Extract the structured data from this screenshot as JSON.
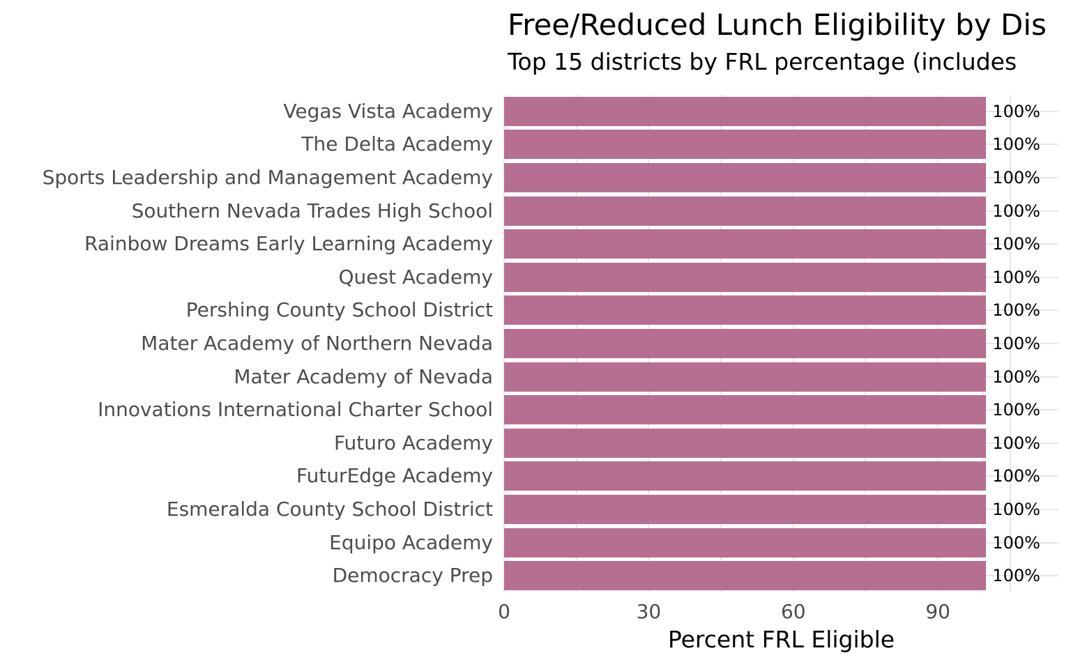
{
  "page": {
    "background": "#ffffff"
  },
  "chart_data": {
    "type": "bar",
    "orientation": "horizontal",
    "title": "Free/Reduced Lunch Eligibility by Dis",
    "subtitle": "Top 15 districts by FRL percentage (includes",
    "xlabel": "Percent FRL Eligible",
    "ylabel": "",
    "categories": [
      "Vegas Vista Academy",
      "The Delta Academy",
      "Sports Leadership and Management Academy",
      "Southern Nevada Trades High School",
      "Rainbow Dreams Early Learning Academy",
      "Quest Academy",
      "Pershing County School District",
      "Mater Academy of Northern Nevada",
      "Mater Academy of Nevada",
      "Innovations International Charter School",
      "Futuro Academy",
      "FuturEdge Academy",
      "Esmeralda County School District",
      "Equipo Academy",
      "Democracy Prep"
    ],
    "values": [
      100,
      100,
      100,
      100,
      100,
      100,
      100,
      100,
      100,
      100,
      100,
      100,
      100,
      100,
      100
    ],
    "value_labels": [
      "100%",
      "100%",
      "100%",
      "100%",
      "100%",
      "100%",
      "100%",
      "100%",
      "100%",
      "100%",
      "100%",
      "100%",
      "100%",
      "100%",
      "100%"
    ],
    "xlim": [
      0,
      115
    ],
    "xticks": [
      0,
      30,
      60,
      90
    ],
    "x_gridlines": [
      0,
      15,
      30,
      45,
      60,
      75,
      90,
      105
    ],
    "grid": "on",
    "legend": "none",
    "bar_color": "#b66e91",
    "grid_color": "#e6e6e6",
    "axis_text_color": "#4d4d4d",
    "text_color": "#000000"
  }
}
